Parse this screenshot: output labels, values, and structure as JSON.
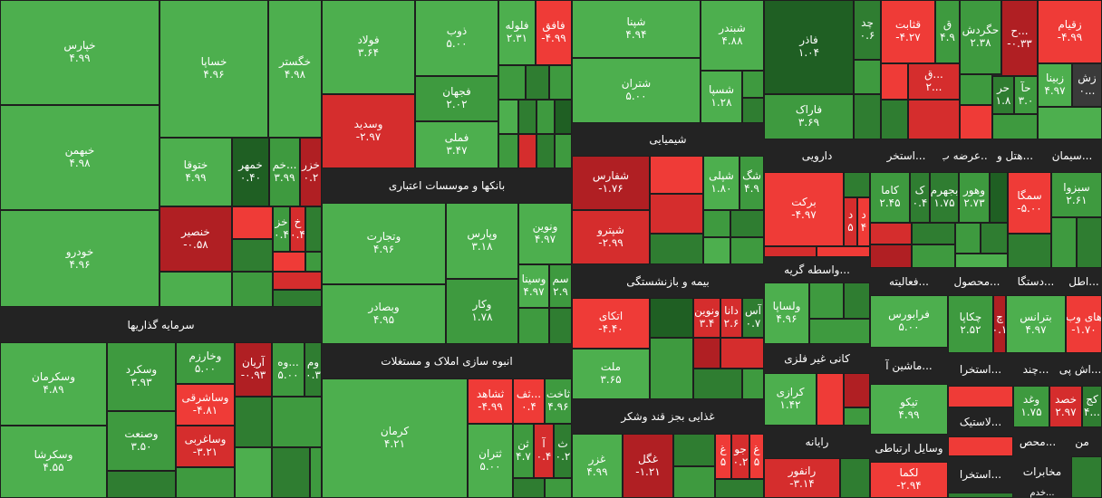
{
  "sectors": [
    {
      "id": "s1",
      "title": "سرمایه گذاریها"
    },
    {
      "id": "s2",
      "title": "بانکها و موسسات اعتباری"
    },
    {
      "id": "s3",
      "title": "انبوه سازی املاک و مستغلات"
    },
    {
      "id": "s4",
      "title": "شیمیایی"
    },
    {
      "id": "s5",
      "title": "بیمه و بازنشستگی"
    },
    {
      "id": "s6",
      "title": "غذایی بجز قند وشکر"
    },
    {
      "id": "s7",
      "title": "دارویی"
    },
    {
      "id": "s8",
      "title": "واسطه گریه..."
    },
    {
      "id": "s9",
      "title": "کانی غیر فلزی"
    },
    {
      "id": "s10",
      "title": "رایانه"
    },
    {
      "id": "s11",
      "title": "استخر..."
    },
    {
      "id": "s12",
      "title": "عرضه ب..."
    },
    {
      "id": "s13",
      "title": "هتل و..."
    },
    {
      "id": "s14",
      "title": "سیمان..."
    },
    {
      "id": "s15",
      "title": "فعالیته..."
    },
    {
      "id": "s16",
      "title": "محصول..."
    },
    {
      "id": "s17",
      "title": "دستگا..."
    },
    {
      "id": "s18",
      "title": "اطل..."
    },
    {
      "id": "s19",
      "title": "ماشین آ..."
    },
    {
      "id": "s20",
      "title": "استخرا..."
    },
    {
      "id": "s21",
      "title": "چند..."
    },
    {
      "id": "s22",
      "title": "اش پی..."
    },
    {
      "id": "s23",
      "title": "وسایل ارتباطی"
    },
    {
      "id": "s24",
      "title": "لاستیک..."
    },
    {
      "id": "s25",
      "title": "محص..."
    },
    {
      "id": "s26",
      "title": "من"
    },
    {
      "id": "s27",
      "title": "استخرا..."
    },
    {
      "id": "s28",
      "title": "مخابرات"
    },
    {
      "id": "s29",
      "title": "خدم..."
    }
  ],
  "tiles": [
    {
      "id": "t1",
      "name": "خپارس",
      "value": "۴.۹۹"
    },
    {
      "id": "t2",
      "name": "خساپا",
      "value": "۴.۹۶"
    },
    {
      "id": "t3",
      "name": "خگستر",
      "value": "۴.۹۸"
    },
    {
      "id": "t4",
      "name": "خبهمن",
      "value": "۴.۹۸"
    },
    {
      "id": "t5",
      "name": "خودرو",
      "value": "۴.۹۶"
    },
    {
      "id": "t6",
      "name": "ختوقا",
      "value": "۴.۹۹"
    },
    {
      "id": "t7",
      "name": "خمهر",
      "value": "۰.۴۰"
    },
    {
      "id": "t8",
      "name": "خم...",
      "value": "۳.۹۹"
    },
    {
      "id": "t9",
      "name": "خزر",
      "value": "۰.۲"
    },
    {
      "id": "t10",
      "name": "خنصیر",
      "value": "-۰.۵۸"
    },
    {
      "id": "t11",
      "name": "خز",
      "value": "۰.۴"
    },
    {
      "id": "t12",
      "name": "خ",
      "value": "۰.۴"
    },
    {
      "id": "t13",
      "name": "فولاد",
      "value": "۳.۶۴"
    },
    {
      "id": "t14",
      "name": "ذوب",
      "value": "۵.۰۰"
    },
    {
      "id": "t15",
      "name": "فلوله",
      "value": "۲.۳۱"
    },
    {
      "id": "t16",
      "name": "فافق",
      "value": "-۴.۹۹"
    },
    {
      "id": "t17",
      "name": "فجهان",
      "value": "۲.۰۲"
    },
    {
      "id": "t18",
      "name": "وسدید",
      "value": "-۲.۹۷"
    },
    {
      "id": "t19",
      "name": "فملی",
      "value": "۳.۴۷"
    },
    {
      "id": "t20",
      "name": "شپنا",
      "value": "۴.۹۴"
    },
    {
      "id": "t21",
      "name": "شبندر",
      "value": "۴.۸۸"
    },
    {
      "id": "t22",
      "name": "شتران",
      "value": "۵.۰۰"
    },
    {
      "id": "t23",
      "name": "شسپا",
      "value": "۱.۲۸"
    },
    {
      "id": "t24",
      "name": "فاذر",
      "value": "۱.۰۴"
    },
    {
      "id": "t25",
      "name": "چد",
      "value": "۰.۶"
    },
    {
      "id": "t26",
      "name": "قثابت",
      "value": "-۴.۲۷"
    },
    {
      "id": "t27",
      "name": "ق",
      "value": "۴.۹"
    },
    {
      "id": "t28",
      "name": "حگردش",
      "value": "۲.۳۸"
    },
    {
      "id": "t29",
      "name": "ح...",
      "value": "-۰.۳۳"
    },
    {
      "id": "t30",
      "name": "زقیام",
      "value": "-۴.۹۹"
    },
    {
      "id": "t31",
      "name": "فاراک",
      "value": "۳.۶۹"
    },
    {
      "id": "t32",
      "name": "ق...",
      "value": "۲..."
    },
    {
      "id": "t33",
      "name": "زبینا",
      "value": "۴.۹۷"
    },
    {
      "id": "t34",
      "name": "زش",
      "value": "۰..."
    },
    {
      "id": "t35",
      "name": "حر",
      "value": "۱.۸"
    },
    {
      "id": "t36",
      "name": "حآ",
      "value": "۳.۰"
    },
    {
      "id": "t37",
      "name": "وتجارت",
      "value": "۴.۹۶"
    },
    {
      "id": "t38",
      "name": "وپارس",
      "value": "۳.۱۸"
    },
    {
      "id": "t39",
      "name": "ونوین",
      "value": "۴.۹۷"
    },
    {
      "id": "t40",
      "name": "وبصادر",
      "value": "۴.۹۵"
    },
    {
      "id": "t41",
      "name": "وکار",
      "value": "۱.۷۸"
    },
    {
      "id": "t42",
      "name": "وسینا",
      "value": "۴.۹۷"
    },
    {
      "id": "t43",
      "name": "سم",
      "value": "۲.۹"
    },
    {
      "id": "t44",
      "name": "شفارس",
      "value": "-۱.۷۶"
    },
    {
      "id": "t45",
      "name": "شپلی",
      "value": "۱.۸۰"
    },
    {
      "id": "t46",
      "name": "شگ",
      "value": "۴.۹"
    },
    {
      "id": "t47",
      "name": "شپترو",
      "value": "-۲.۹۹"
    },
    {
      "id": "t48",
      "name": "برکت",
      "value": "-۴.۹۷"
    },
    {
      "id": "t49",
      "name": "د",
      "value": "۵"
    },
    {
      "id": "t50",
      "name": "د",
      "value": "۴"
    },
    {
      "id": "t51",
      "name": "کاما",
      "value": "۲.۴۵"
    },
    {
      "id": "t52",
      "name": "ک",
      "value": "۰.۴"
    },
    {
      "id": "t53",
      "name": "بجهرم",
      "value": "۱.۷۵"
    },
    {
      "id": "t54",
      "name": "وهور",
      "value": "۲.۷۳"
    },
    {
      "id": "t55",
      "name": "سمگا",
      "value": "-۵.۰۰"
    },
    {
      "id": "t56",
      "name": "سبزوا",
      "value": "۲.۶۱"
    },
    {
      "id": "t57",
      "name": "وسکرمان",
      "value": "۴.۸۹"
    },
    {
      "id": "t58",
      "name": "وسکرد",
      "value": "۳.۹۳"
    },
    {
      "id": "t59",
      "name": "وخارزم",
      "value": "۵.۰۰"
    },
    {
      "id": "t60",
      "name": "آریان",
      "value": "-۰.۹۳"
    },
    {
      "id": "t61",
      "name": "وه...",
      "value": "۵.۰۰"
    },
    {
      "id": "t62",
      "name": "وم",
      "value": "۰.۳"
    },
    {
      "id": "t63",
      "name": "وساشرقی",
      "value": "-۴.۸۱"
    },
    {
      "id": "t64",
      "name": "وصنعت",
      "value": "۳.۵۰"
    },
    {
      "id": "t65",
      "name": "وساغربی",
      "value": "-۳.۲۱"
    },
    {
      "id": "t66",
      "name": "وسکرشا",
      "value": "۴.۵۵"
    },
    {
      "id": "t67",
      "name": "کرمان",
      "value": "۴.۲۱"
    },
    {
      "id": "t68",
      "name": "ثشاهد",
      "value": "-۴.۹۹"
    },
    {
      "id": "t69",
      "name": "ثف...",
      "value": "۰.۴"
    },
    {
      "id": "t70",
      "name": "ثاخت",
      "value": "۴.۹۶"
    },
    {
      "id": "t71",
      "name": "ثتران",
      "value": "۵.۰۰"
    },
    {
      "id": "t72",
      "name": "ثن",
      "value": "۴.۷"
    },
    {
      "id": "t73",
      "name": "آ",
      "value": "۰.۴"
    },
    {
      "id": "t74",
      "name": "ث",
      "value": "۰.۲"
    },
    {
      "id": "t75",
      "name": "اتکای",
      "value": "-۴.۴۰"
    },
    {
      "id": "t76",
      "name": "ونوین",
      "value": "۳.۴"
    },
    {
      "id": "t77",
      "name": "دانا",
      "value": "۲.۶"
    },
    {
      "id": "t78",
      "name": "آس",
      "value": "۰.۷"
    },
    {
      "id": "t79",
      "name": "ملت",
      "value": "۳.۶۵"
    },
    {
      "id": "t80",
      "name": "غزر",
      "value": "۴.۹۹"
    },
    {
      "id": "t81",
      "name": "غگل",
      "value": "-۱.۲۱"
    },
    {
      "id": "t82",
      "name": "غ",
      "value": "۵"
    },
    {
      "id": "t83",
      "name": "جو",
      "value": "۰.۲"
    },
    {
      "id": "t84",
      "name": "غ",
      "value": "۵"
    },
    {
      "id": "t85",
      "name": "ولساپا",
      "value": "۴.۹۶"
    },
    {
      "id": "t86",
      "name": "کرازی",
      "value": "۱.۴۲"
    },
    {
      "id": "t87",
      "name": "رانفور",
      "value": "-۳.۱۴"
    },
    {
      "id": "t88",
      "name": "فرابورس",
      "value": "۵.۰۰"
    },
    {
      "id": "t89",
      "name": "چکاپا",
      "value": "۲.۵۲"
    },
    {
      "id": "t90",
      "name": "چ",
      "value": "۰.۱"
    },
    {
      "id": "t91",
      "name": "بترانس",
      "value": "۴.۹۷"
    },
    {
      "id": "t92",
      "name": "های وب",
      "value": "-۱.۷۰"
    },
    {
      "id": "t93",
      "name": "تیکو",
      "value": "۴.۹۹"
    },
    {
      "id": "t94",
      "name": "وغد",
      "value": "۱.۷۵"
    },
    {
      "id": "t95",
      "name": "خصد",
      "value": "۲.۹۷"
    },
    {
      "id": "t96",
      "name": "کج",
      "value": "۴..."
    },
    {
      "id": "t97",
      "name": "لکما",
      "value": "-۲.۹۴"
    }
  ]
}
